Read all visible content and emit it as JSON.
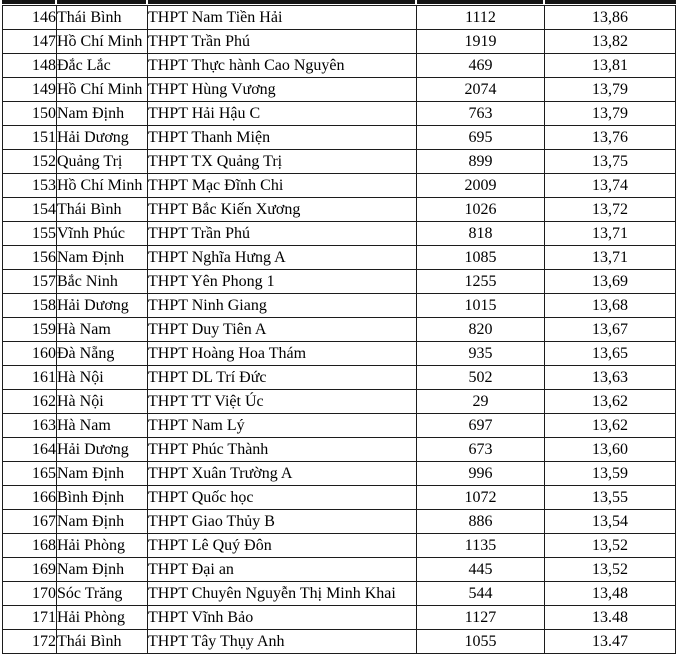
{
  "table": {
    "rows": [
      {
        "rank": "146",
        "province": "Thái Bình",
        "school": "THPT Nam Tiền Hải",
        "students": "1112",
        "score": "13,86"
      },
      {
        "rank": "147",
        "province": "Hồ Chí Minh",
        "school": "THPT Trần Phú",
        "students": "1919",
        "score": "13,82"
      },
      {
        "rank": "148",
        "province": "Đắc Lắc",
        "school": "THPT Thực hành Cao Nguyên",
        "students": "469",
        "score": "13,81"
      },
      {
        "rank": "149",
        "province": "Hồ Chí Minh",
        "school": "THPT Hùng Vương",
        "students": "2074",
        "score": "13,79"
      },
      {
        "rank": "150",
        "province": "Nam Định",
        "school": "THPT Hải Hậu C",
        "students": "763",
        "score": "13,79"
      },
      {
        "rank": "151",
        "province": "Hải Dương",
        "school": "THPT Thanh Miện",
        "students": "695",
        "score": "13,76"
      },
      {
        "rank": "152",
        "province": "Quảng Trị",
        "school": "THPT TX Quảng Trị",
        "students": "899",
        "score": "13,75"
      },
      {
        "rank": "153",
        "province": "Hồ Chí Minh",
        "school": "THPT Mạc Đĩnh Chi",
        "students": "2009",
        "score": "13,74"
      },
      {
        "rank": "154",
        "province": "Thái Bình",
        "school": "THPT Bắc Kiến Xương",
        "students": "1026",
        "score": "13,72"
      },
      {
        "rank": "155",
        "province": "Vĩnh Phúc",
        "school": "THPT Trần Phú",
        "students": "818",
        "score": "13,71"
      },
      {
        "rank": "156",
        "province": "Nam Định",
        "school": "THPT Nghĩa Hưng A",
        "students": "1085",
        "score": "13,71"
      },
      {
        "rank": "157",
        "province": "Bắc Ninh",
        "school": "THPT Yên Phong 1",
        "students": "1255",
        "score": "13,69"
      },
      {
        "rank": "158",
        "province": "Hải Dương",
        "school": "THPT Ninh Giang",
        "students": "1015",
        "score": "13,68"
      },
      {
        "rank": "159",
        "province": "Hà Nam",
        "school": "THPT Duy Tiên A",
        "students": "820",
        "score": "13,67"
      },
      {
        "rank": "160",
        "province": "Đà Nẵng",
        "school": "THPT Hoàng Hoa Thám",
        "students": "935",
        "score": "13,65"
      },
      {
        "rank": "161",
        "province": "Hà Nội",
        "school": "THPT DL Trí Đức",
        "students": "502",
        "score": "13,63"
      },
      {
        "rank": "162",
        "province": "Hà Nội",
        "school": "THPT TT Việt Úc",
        "students": "29",
        "score": "13,62"
      },
      {
        "rank": "163",
        "province": "Hà Nam",
        "school": "THPT Nam Lý",
        "students": "697",
        "score": "13,62"
      },
      {
        "rank": "164",
        "province": "Hải Dương",
        "school": "THPT Phúc Thành",
        "students": "673",
        "score": "13,60"
      },
      {
        "rank": "165",
        "province": "Nam Định",
        "school": "THPT Xuân Trường A",
        "students": "996",
        "score": "13,59"
      },
      {
        "rank": "166",
        "province": "Bình Định",
        "school": "THPT Quốc học",
        "students": "1072",
        "score": "13,55"
      },
      {
        "rank": "167",
        "province": "Nam Định",
        "school": "THPT Giao Thủy B",
        "students": "886",
        "score": "13,54"
      },
      {
        "rank": "168",
        "province": "Hải Phòng",
        "school": "THPT Lê Quý Đôn",
        "students": "1135",
        "score": "13,52"
      },
      {
        "rank": "169",
        "province": "Nam Định",
        "school": "THPT Đại an",
        "students": "445",
        "score": "13,52"
      },
      {
        "rank": "170",
        "province": "Sóc Trăng",
        "school": "THPT Chuyên Nguyễn Thị Minh Khai",
        "students": "544",
        "score": "13,48"
      },
      {
        "rank": "171",
        "province": "Hải Phòng",
        "school": "THPT Vĩnh Bảo",
        "students": "1127",
        "score": "13.48"
      },
      {
        "rank": "172",
        "province": "Thái Bình",
        "school": "THPT Tây Thụy Anh",
        "students": "1055",
        "score": "13.47"
      }
    ]
  },
  "colors": {
    "border": "#1c1c1c",
    "cutoff_bar": "#141414",
    "text": "#000000",
    "background": "#ffffff"
  }
}
